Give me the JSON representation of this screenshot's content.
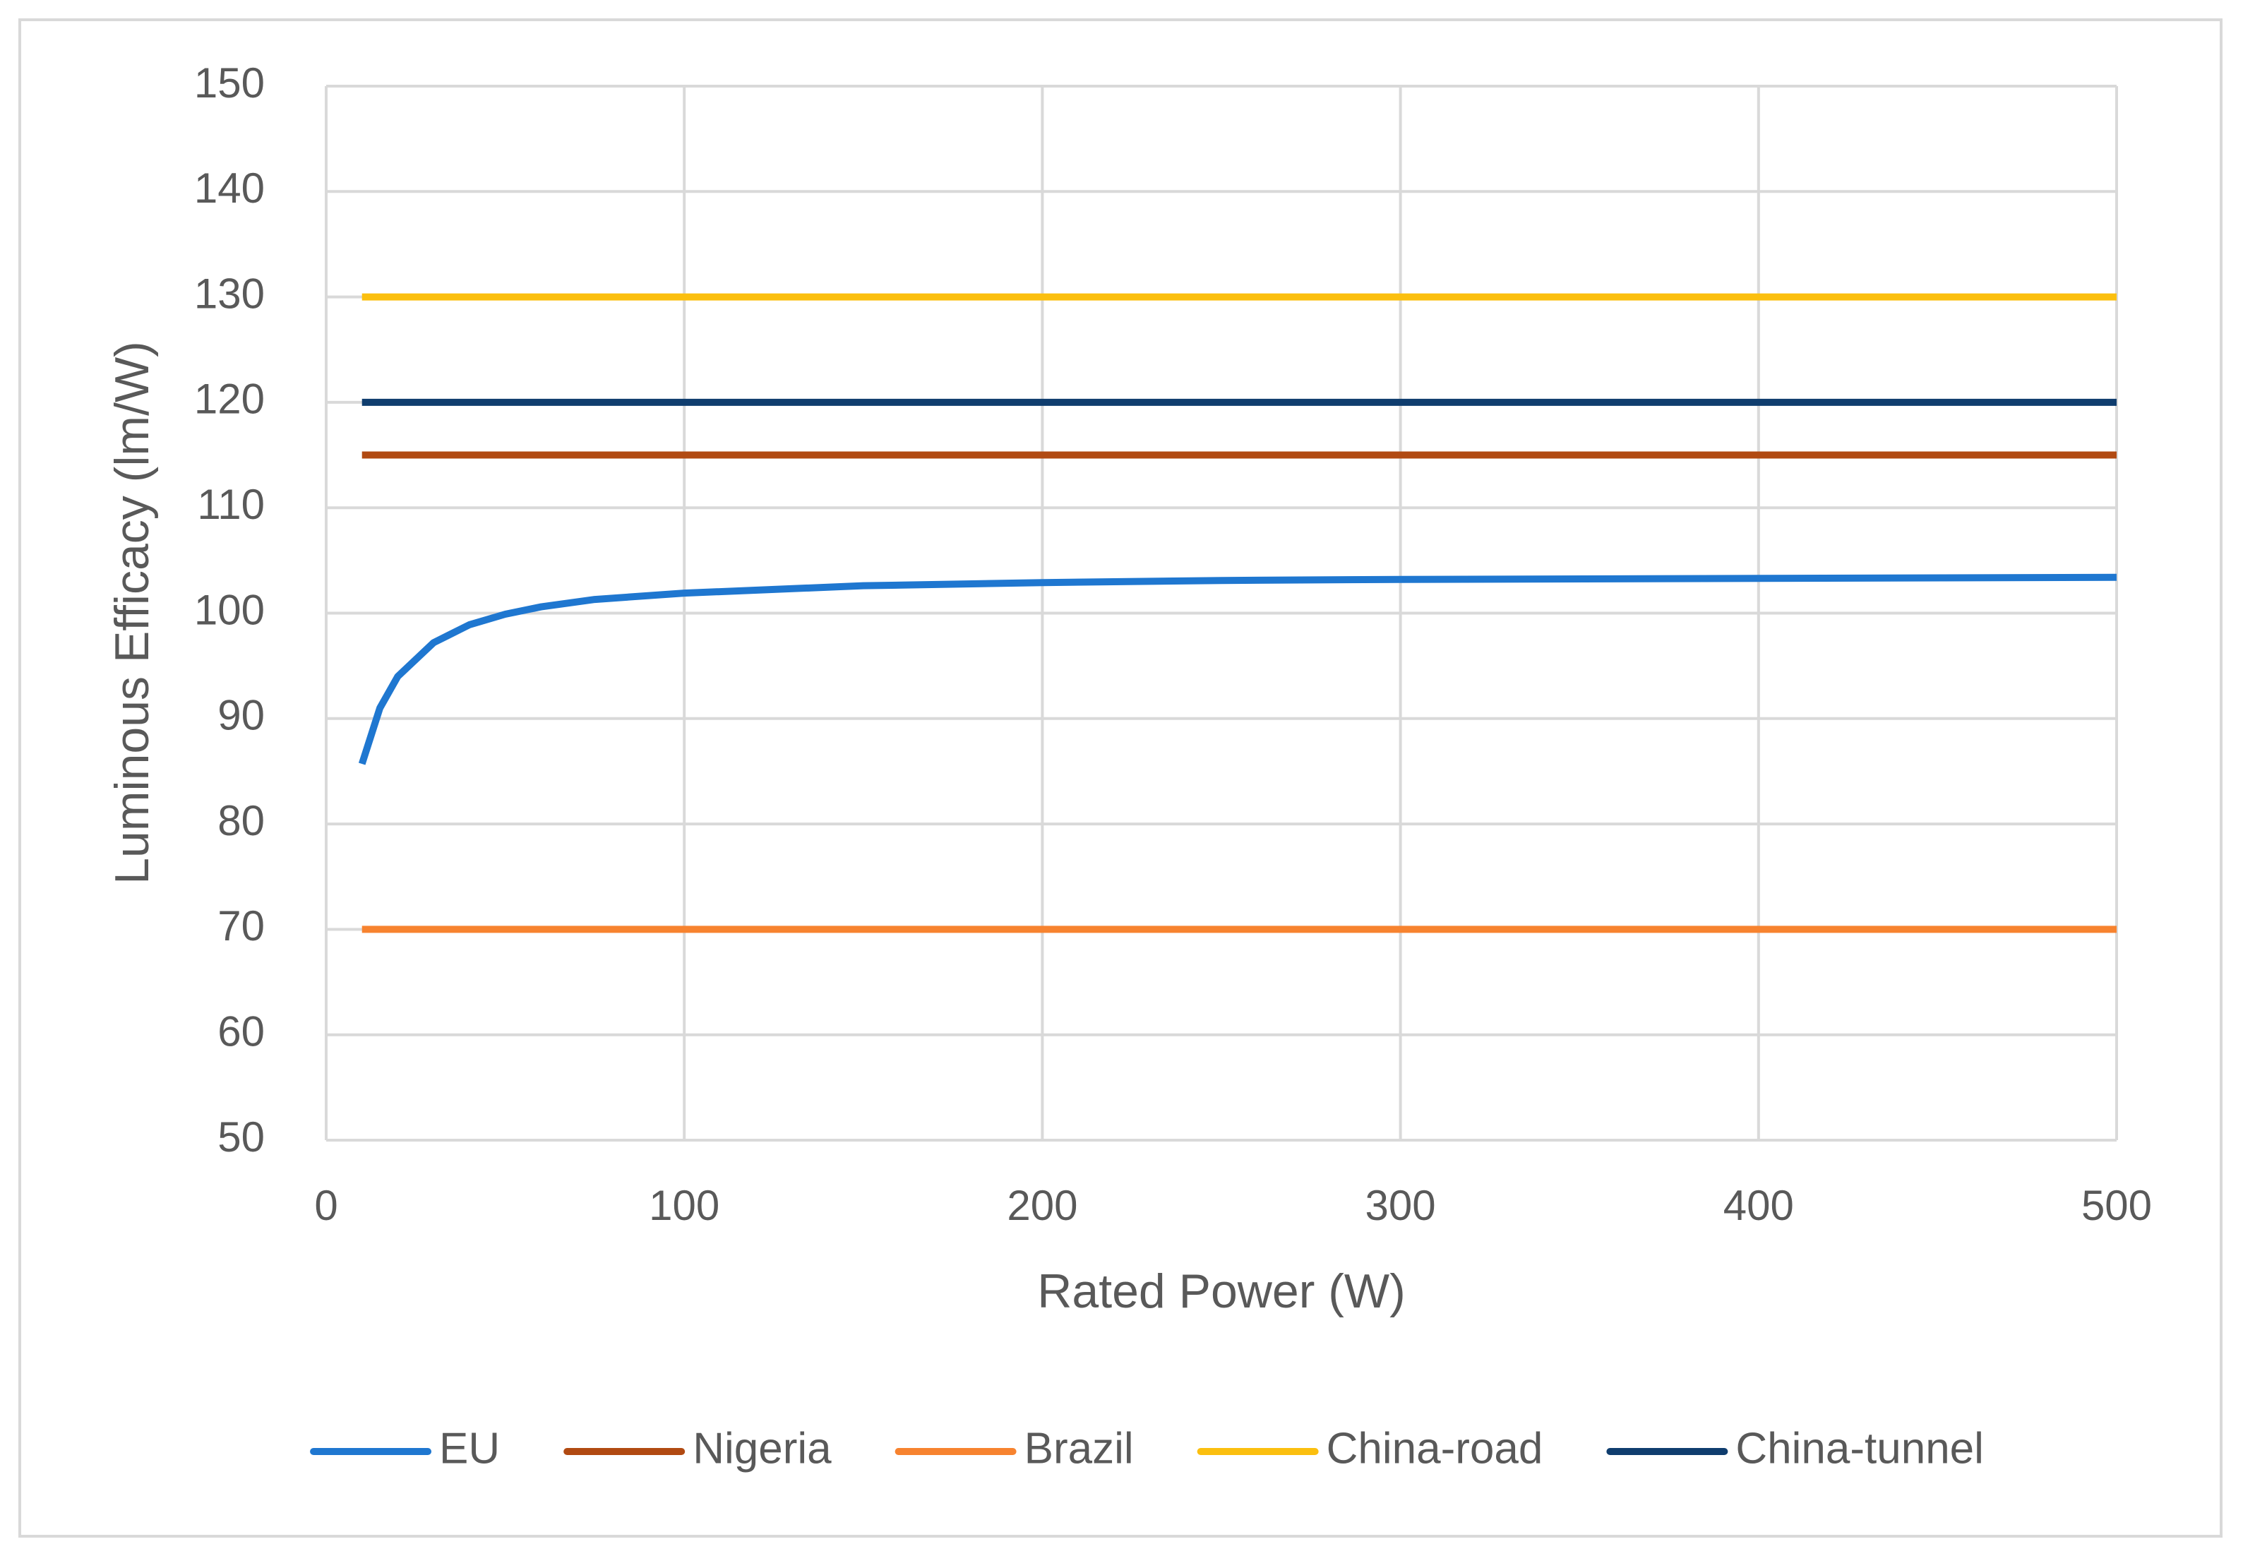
{
  "chart_data": {
    "type": "line",
    "x_label": "Rated Power (W)",
    "y_label": "Luminous Efficacy (lm/W)",
    "xlim": [
      0,
      500
    ],
    "xticks": [
      0,
      100,
      200,
      300,
      400,
      500
    ],
    "ylim": [
      50,
      150
    ],
    "yticks": [
      50,
      60,
      70,
      80,
      90,
      100,
      110,
      120,
      130,
      140,
      150
    ],
    "grid": true,
    "legend": "bottom",
    "series": [
      {
        "name": "EU",
        "color": "#1f77d0",
        "x": [
          10,
          15,
          20,
          30,
          40,
          50,
          60,
          75,
          100,
          150,
          200,
          250,
          300,
          400,
          500
        ],
        "values": [
          85.7,
          91,
          94,
          97.2,
          98.9,
          99.9,
          100.6,
          101.3,
          101.9,
          102.6,
          102.9,
          103.1,
          103.2,
          103.3,
          103.4
        ]
      },
      {
        "name": "Nigeria",
        "color": "#b14a12",
        "x": [
          10,
          500
        ],
        "values": [
          115,
          115
        ]
      },
      {
        "name": "Brazil",
        "color": "#f7832f",
        "x": [
          10,
          500
        ],
        "values": [
          70,
          70
        ]
      },
      {
        "name": "China-road",
        "color": "#fbbf0f",
        "x": [
          10,
          500
        ],
        "values": [
          130,
          130
        ]
      },
      {
        "name": "China-tunnel",
        "color": "#0f3d6e",
        "x": [
          10,
          500
        ],
        "values": [
          120,
          120
        ]
      }
    ]
  }
}
